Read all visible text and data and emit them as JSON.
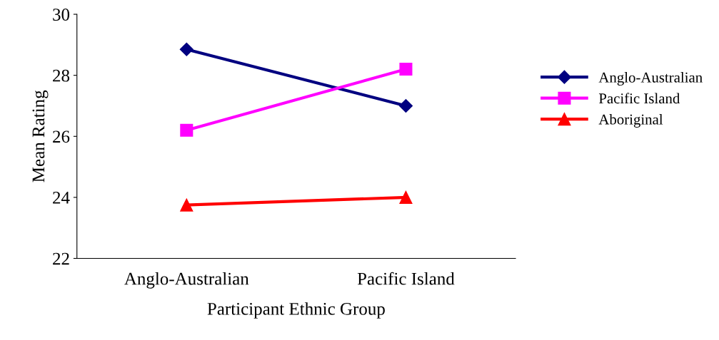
{
  "chart_data": {
    "type": "line",
    "xlabel": "Participant Ethnic Group",
    "ylabel": "Mean Rating",
    "categories": [
      "Anglo-Australian",
      "Pacific Island"
    ],
    "series": [
      {
        "name": "Anglo-Australian",
        "color": "#000080",
        "marker": "diamond",
        "values": [
          28.85,
          27.0
        ]
      },
      {
        "name": "Pacific Island",
        "color": "#ff00ff",
        "marker": "square",
        "values": [
          26.2,
          28.2
        ]
      },
      {
        "name": "Aboriginal",
        "color": "#ff0000",
        "marker": "triangle",
        "values": [
          23.75,
          24.0
        ]
      }
    ],
    "ylim": [
      22,
      30
    ],
    "yticks": [
      22,
      24,
      26,
      28,
      30
    ],
    "grid": false,
    "legend": "right"
  }
}
